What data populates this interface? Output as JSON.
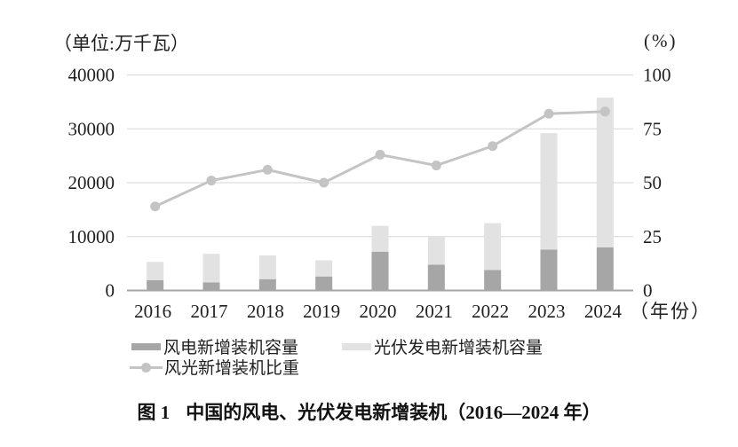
{
  "unit_label": "（单位:万千瓦）",
  "percent_label": "(%)",
  "caption": {
    "label": "图 1",
    "title": "中国的风电、光伏发电新增装机（2016—2024 年）"
  },
  "chart_data": {
    "type": "bar",
    "subtype": "stacked-bar-with-line",
    "title": "中国的风电、光伏发电新增装机（2016—2024 年）",
    "categories": [
      "2016",
      "2017",
      "2018",
      "2019",
      "2020",
      "2021",
      "2022",
      "2023",
      "2024"
    ],
    "series": [
      {
        "name": "风电新增装机容量",
        "type": "bar",
        "axis": "left",
        "color": "#a6a6a6",
        "values": [
          1900,
          1500,
          2100,
          2600,
          7200,
          4800,
          3800,
          7600,
          8000
        ]
      },
      {
        "name": "光伏发电新增装机容量",
        "type": "bar",
        "axis": "left",
        "color": "#e2e2e2",
        "values": [
          3400,
          5300,
          4400,
          3000,
          4800,
          5300,
          8700,
          21600,
          27800
        ]
      },
      {
        "name": "风光新增装机比重",
        "type": "line",
        "axis": "right",
        "color": "#c4c4c4",
        "values": [
          39,
          51,
          56,
          50,
          63,
          58,
          67,
          82,
          83
        ]
      }
    ],
    "left_axis": {
      "label": "（单位:万千瓦）",
      "min": 0,
      "max": 40000,
      "ticks": [
        0,
        10000,
        20000,
        30000,
        40000
      ]
    },
    "right_axis": {
      "label": "(%)",
      "min": 0,
      "max": 100,
      "ticks": [
        0,
        25,
        50,
        75,
        100
      ]
    },
    "x_axis_label": "（年份）",
    "grid": true,
    "legend_position": "bottom",
    "colors": {
      "grid": "#d6d6d6",
      "baseline": "#a6a6a6",
      "text": "#1f1f1f"
    }
  }
}
